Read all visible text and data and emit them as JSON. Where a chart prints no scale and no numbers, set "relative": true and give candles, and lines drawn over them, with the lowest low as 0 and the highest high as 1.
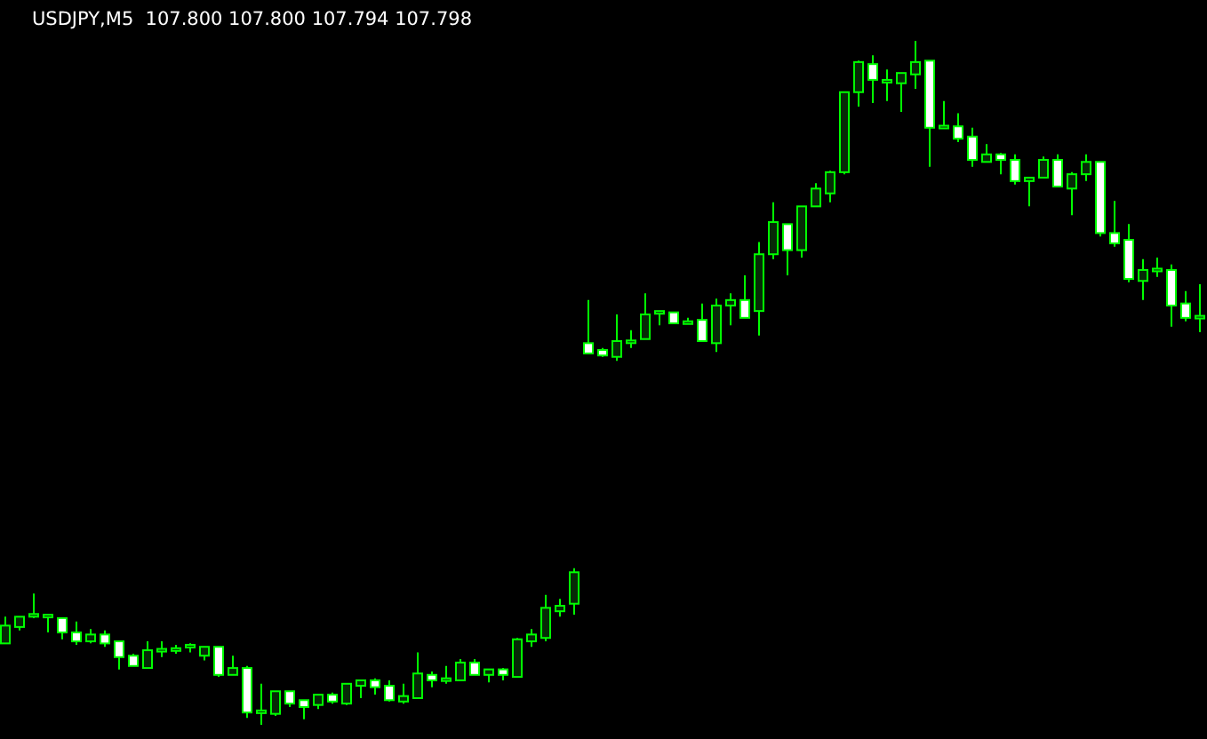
{
  "chart_data": {
    "type": "candlestick",
    "title": "USDJPY,M5  107.800 107.800 107.794 107.798",
    "relative": true,
    "color": "#00ff00",
    "categories": [
      null,
      null,
      null,
      null,
      null,
      null,
      null,
      null,
      null,
      null,
      null,
      null,
      null,
      null,
      null,
      null,
      null,
      null,
      null,
      null,
      null,
      null,
      null,
      null,
      null,
      null,
      null,
      null,
      null,
      null,
      null,
      null,
      null,
      null,
      null,
      null,
      null,
      null,
      null,
      null,
      null,
      null,
      null,
      null,
      null,
      null,
      null,
      null,
      null,
      null,
      null,
      null,
      null,
      null,
      null,
      null,
      null,
      null,
      null,
      null,
      null,
      null,
      null,
      null,
      null,
      null,
      null,
      null,
      null,
      null,
      null,
      null,
      null,
      null,
      null,
      null,
      null,
      null,
      null,
      null,
      null,
      null,
      null,
      null,
      null
    ],
    "ohlc": [
      [
        0.119,
        0.158,
        0.119,
        0.145
      ],
      [
        0.143,
        0.158,
        0.138,
        0.158
      ],
      [
        0.158,
        0.192,
        0.156,
        0.16
      ],
      [
        0.158,
        0.16,
        0.135,
        0.159
      ],
      [
        0.156,
        0.156,
        0.125,
        0.135
      ],
      [
        0.135,
        0.151,
        0.117,
        0.122
      ],
      [
        0.122,
        0.14,
        0.119,
        0.132
      ],
      [
        0.132,
        0.138,
        0.114,
        0.119
      ],
      [
        0.122,
        0.122,
        0.081,
        0.099
      ],
      [
        0.101,
        0.104,
        0.086,
        0.086
      ],
      [
        0.083,
        0.122,
        0.083,
        0.109
      ],
      [
        0.108,
        0.122,
        0.099,
        0.109
      ],
      [
        0.109,
        0.117,
        0.104,
        0.11
      ],
      [
        0.114,
        0.119,
        0.106,
        0.115
      ],
      [
        0.101,
        0.114,
        0.094,
        0.114
      ],
      [
        0.114,
        0.114,
        0.07,
        0.073
      ],
      [
        0.073,
        0.101,
        0.073,
        0.083
      ],
      [
        0.083,
        0.086,
        0.01,
        0.018
      ],
      [
        0.018,
        0.06,
        0,
        0.019
      ],
      [
        0.016,
        0.049,
        0.013,
        0.049
      ],
      [
        0.049,
        0.049,
        0.026,
        0.031
      ],
      [
        0.036,
        0.036,
        0.008,
        0.026
      ],
      [
        0.029,
        0.044,
        0.023,
        0.044
      ],
      [
        0.044,
        0.047,
        0.031,
        0.034
      ],
      [
        0.031,
        0.06,
        0.029,
        0.06
      ],
      [
        0.057,
        0.065,
        0.039,
        0.065
      ],
      [
        0.065,
        0.068,
        0.044,
        0.055
      ],
      [
        0.057,
        0.065,
        0.034,
        0.036
      ],
      [
        0.034,
        0.06,
        0.031,
        0.042
      ],
      [
        0.039,
        0.106,
        0.039,
        0.075
      ],
      [
        0.073,
        0.078,
        0.055,
        0.065
      ],
      [
        0.065,
        0.086,
        0.06,
        0.066
      ],
      [
        0.065,
        0.096,
        0.065,
        0.091
      ],
      [
        0.091,
        0.096,
        0.073,
        0.073
      ],
      [
        0.073,
        0.081,
        0.062,
        0.081
      ],
      [
        0.081,
        0.083,
        0.065,
        0.073
      ],
      [
        0.07,
        0.127,
        0.07,
        0.125
      ],
      [
        0.122,
        0.14,
        0.114,
        0.132
      ],
      [
        0.127,
        0.19,
        0.122,
        0.171
      ],
      [
        0.166,
        0.184,
        0.158,
        0.174
      ],
      [
        0.177,
        0.229,
        0.161,
        0.223
      ],
      [
        0.558,
        0.621,
        0.543,
        0.543
      ],
      [
        0.548,
        0.551,
        0.538,
        0.54
      ],
      [
        0.538,
        0.6,
        0.532,
        0.561
      ],
      [
        0.558,
        0.577,
        0.551,
        0.56
      ],
      [
        0.564,
        0.631,
        0.564,
        0.6
      ],
      [
        0.601,
        0.604,
        0.584,
        0.603
      ],
      [
        0.603,
        0.603,
        0.587,
        0.587
      ],
      [
        0.587,
        0.595,
        0.587,
        0.588
      ],
      [
        0.592,
        0.616,
        0.561,
        0.561
      ],
      [
        0.558,
        0.623,
        0.545,
        0.613
      ],
      [
        0.613,
        0.631,
        0.584,
        0.621
      ],
      [
        0.621,
        0.657,
        0.595,
        0.595
      ],
      [
        0.605,
        0.706,
        0.569,
        0.688
      ],
      [
        0.688,
        0.764,
        0.681,
        0.735
      ],
      [
        0.732,
        0.732,
        0.657,
        0.694
      ],
      [
        0.694,
        0.758,
        0.683,
        0.758
      ],
      [
        0.758,
        0.792,
        0.758,
        0.784
      ],
      [
        0.777,
        0.81,
        0.764,
        0.808
      ],
      [
        0.808,
        0.925,
        0.805,
        0.925
      ],
      [
        0.925,
        0.971,
        0.904,
        0.969
      ],
      [
        0.966,
        0.979,
        0.909,
        0.943
      ],
      [
        0.939,
        0.958,
        0.912,
        0.941
      ],
      [
        0.938,
        0.953,
        0.896,
        0.953
      ],
      [
        0.951,
        1,
        0.93,
        0.969
      ],
      [
        0.971,
        0.971,
        0.816,
        0.873
      ],
      [
        0.873,
        0.912,
        0.873,
        0.874
      ],
      [
        0.875,
        0.894,
        0.852,
        0.857
      ],
      [
        0.86,
        0.873,
        0.816,
        0.826
      ],
      [
        0.823,
        0.849,
        0.823,
        0.834
      ],
      [
        0.834,
        0.836,
        0.805,
        0.826
      ],
      [
        0.826,
        0.834,
        0.79,
        0.795
      ],
      [
        0.795,
        0.8,
        0.758,
        0.8
      ],
      [
        0.8,
        0.831,
        0.8,
        0.826
      ],
      [
        0.826,
        0.834,
        0.787,
        0.787
      ],
      [
        0.784,
        0.808,
        0.745,
        0.805
      ],
      [
        0.805,
        0.834,
        0.795,
        0.823
      ],
      [
        0.823,
        0.823,
        0.714,
        0.719
      ],
      [
        0.719,
        0.766,
        0.699,
        0.704
      ],
      [
        0.709,
        0.732,
        0.647,
        0.652
      ],
      [
        0.649,
        0.681,
        0.621,
        0.665
      ],
      [
        0.664,
        0.683,
        0.655,
        0.665
      ],
      [
        0.665,
        0.673,
        0.582,
        0.613
      ],
      [
        0.616,
        0.634,
        0.59,
        0.595
      ],
      [
        0.595,
        0.644,
        0.574,
        0.596
      ]
    ]
  }
}
